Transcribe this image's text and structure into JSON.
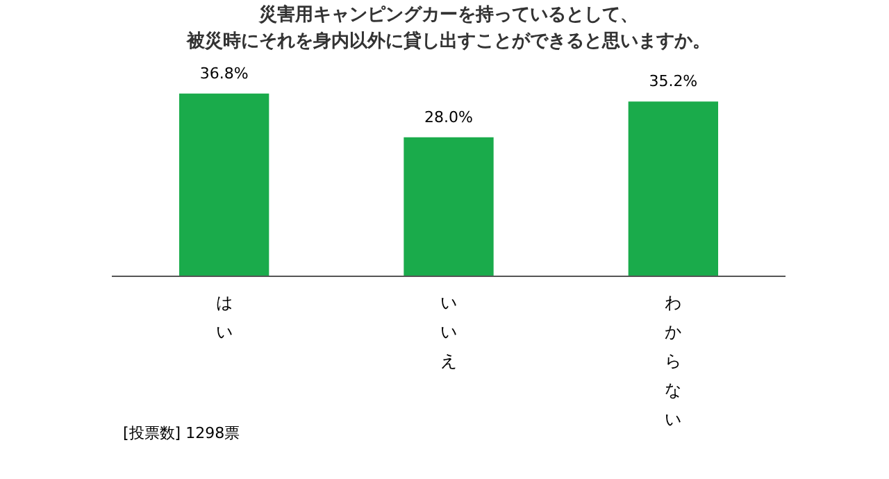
{
  "chart_data": {
    "type": "bar",
    "title": "災害用キャンピングカーを持っているとして、",
    "subtitle": "被災時にそれを身内以外に貸し出すことができると思いますか。",
    "categories": [
      "はい",
      "いいえ",
      "わからない"
    ],
    "values": [
      36.8,
      28.0,
      35.2
    ],
    "value_labels": [
      "36.8%",
      "28.0%",
      "35.2%"
    ],
    "color": "#1aab4b",
    "grid": false,
    "annotations": [
      "[投票数] 1298票"
    ]
  }
}
